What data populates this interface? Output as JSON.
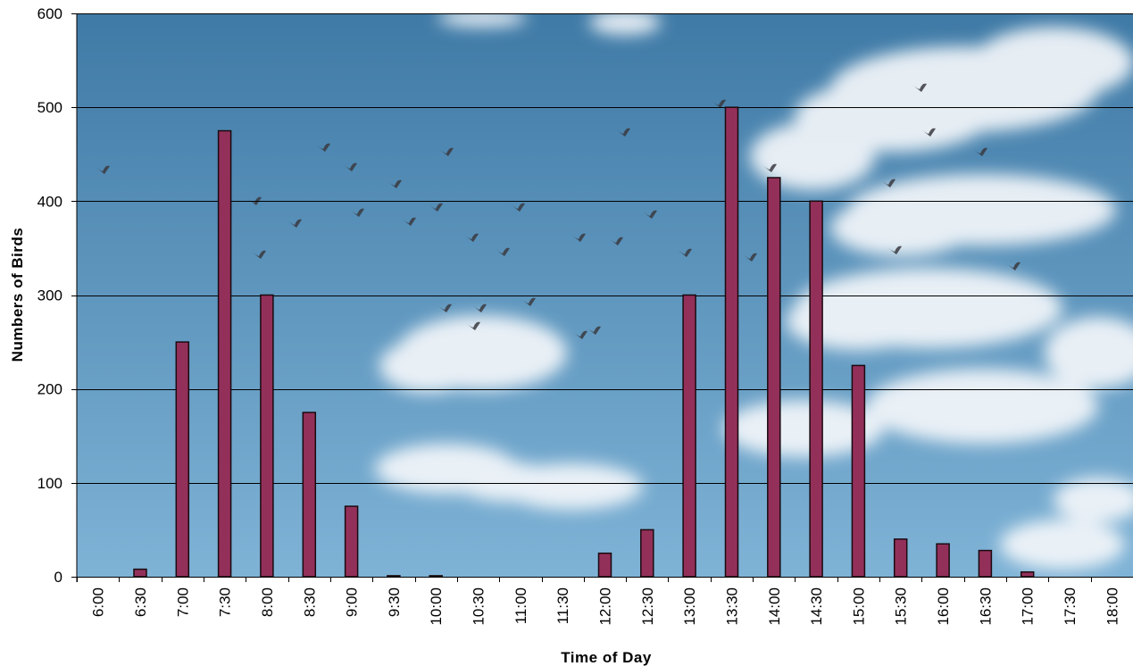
{
  "colors": {
    "bar_fill": "#93305a",
    "bar_stroke": "#1a0a10",
    "sky_top": "#3f7aa6",
    "sky_bottom": "#7fb3d6",
    "cloud": "#f4f7fa",
    "bird": "#3a3a40",
    "gridline": "#000000"
  },
  "chart_data": {
    "type": "bar",
    "title": "",
    "xlabel": "Time  of  Day",
    "ylabel": "Numbers  of  Birds",
    "ylim": [
      0,
      600
    ],
    "yticks": [
      "0",
      "100",
      "200",
      "300",
      "400",
      "500",
      "600"
    ],
    "grid": true,
    "background": "sky photograph with clouds and flying birds",
    "categories": [
      "6:00",
      "6:30",
      "7:00",
      "7:30",
      "8:00",
      "8:30",
      "9:00",
      "9:30",
      "10:00",
      "10:30",
      "11:00",
      "11:30",
      "12:00",
      "12:30",
      "13:00",
      "13:30",
      "14:00",
      "14:30",
      "15:00",
      "15:30",
      "16:00",
      "16:30",
      "17:00",
      "17:30",
      "18:00"
    ],
    "values": [
      0,
      8,
      250,
      475,
      300,
      175,
      75,
      1,
      1,
      0,
      0,
      0,
      25,
      50,
      300,
      500,
      425,
      400,
      225,
      40,
      35,
      28,
      5,
      0,
      0
    ]
  }
}
